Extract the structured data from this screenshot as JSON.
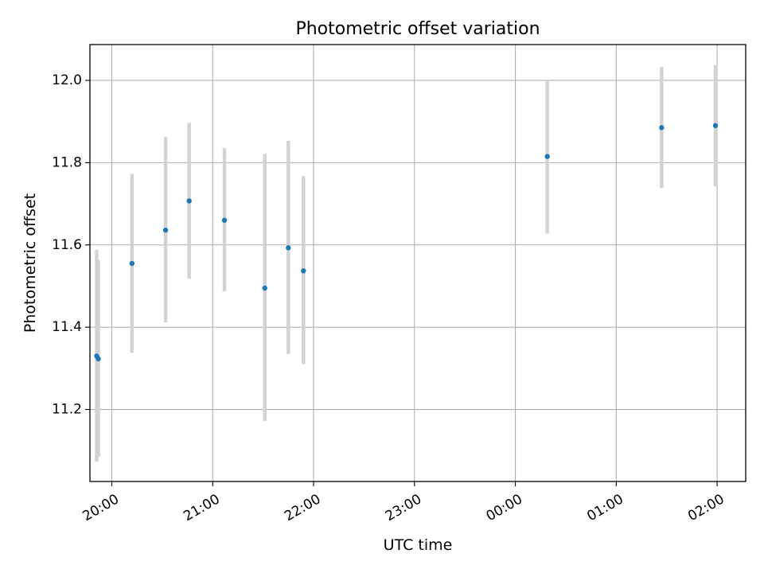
{
  "chart_data": {
    "type": "scatter",
    "title": "Photometric offset variation",
    "xlabel": "UTC time",
    "ylabel": "Photometric offset",
    "x_axis_kind": "time",
    "xlim": [
      "19:47",
      "02:17"
    ],
    "ylim": [
      11.025,
      12.087
    ],
    "grid": true,
    "legend": "none",
    "x_ticks": [
      "20:00",
      "21:00",
      "22:00",
      "23:00",
      "00:00",
      "01:00",
      "02:00"
    ],
    "y_ticks": [
      11.2,
      11.4,
      11.6,
      11.8,
      12.0
    ],
    "y_tick_labels": [
      "11.2",
      "11.4",
      "11.6",
      "11.8",
      "12.0"
    ],
    "series": [
      {
        "point_color": "#1f77b4",
        "errorbar_color": "#d3d3d3",
        "points": [
          {
            "x": "19:51",
            "y": 11.33,
            "err_low": 11.073,
            "err_high": 11.588
          },
          {
            "x": "19:52",
            "y": 11.323,
            "err_low": 11.085,
            "err_high": 11.563
          },
          {
            "x": "20:12",
            "y": 11.555,
            "err_low": 11.338,
            "err_high": 11.773
          },
          {
            "x": "20:32",
            "y": 11.636,
            "err_low": 11.412,
            "err_high": 11.862
          },
          {
            "x": "20:46",
            "y": 11.707,
            "err_low": 11.518,
            "err_high": 11.897
          },
          {
            "x": "21:07",
            "y": 11.66,
            "err_low": 11.487,
            "err_high": 11.835
          },
          {
            "x": "21:31",
            "y": 11.495,
            "err_low": 11.172,
            "err_high": 11.821
          },
          {
            "x": "21:45",
            "y": 11.593,
            "err_low": 11.335,
            "err_high": 11.853
          },
          {
            "x": "21:54",
            "y": 11.537,
            "err_low": 11.31,
            "err_high": 11.767
          },
          {
            "x": "00:19",
            "y": 11.815,
            "err_low": 11.628,
            "err_high": 12.0
          },
          {
            "x": "01:27",
            "y": 11.885,
            "err_low": 11.738,
            "err_high": 12.033
          },
          {
            "x": "01:59",
            "y": 11.89,
            "err_low": 11.742,
            "err_high": 12.037
          }
        ]
      }
    ]
  }
}
